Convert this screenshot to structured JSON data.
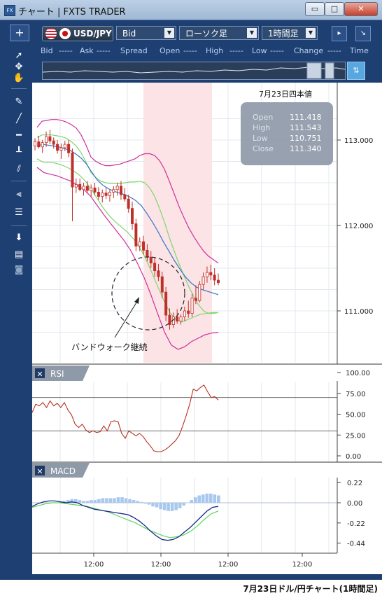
{
  "window": {
    "title": "チャート | FXTS TRADER",
    "app_icon": "FX",
    "controls": [
      "▭",
      "□",
      "✕"
    ]
  },
  "toolbar": {
    "add_label": "+",
    "symbol": "USD/JPY",
    "price_side": "Bid",
    "chart_style": "ローソク足",
    "timeframe": "1時間足",
    "detach_icon": "arrow-icon"
  },
  "quote_row": {
    "items": [
      "Bid",
      "-----",
      "Ask",
      "-----",
      "Spread",
      "Open",
      "-----",
      "High",
      "-----",
      "Low",
      "-----",
      "Change",
      "-----",
      "Time"
    ]
  },
  "sidebar": {
    "tools": [
      "cursor-icon",
      "crosshair-icon",
      "hand-icon",
      "brush-icon",
      "line-icon",
      "horizontal-line-icon",
      "vertical-line-icon",
      "channel-icon",
      "fibonacci-fan-icon",
      "fibonacci-retracement-icon",
      "download-icon",
      "list-icon",
      "camera-icon"
    ]
  },
  "colors": {
    "candle": "#c0302a",
    "bollinger_outer": "#d0309a",
    "bollinger_inner": "#7fd66c",
    "bollinger_middle": "#3576c4",
    "rsi": "#b83020",
    "macd": "#1a2a8c",
    "signal": "#5bd65b",
    "histogram": "#a8c8ee",
    "highlight": "#fbe3e6"
  },
  "chart_data": {
    "type": "candlestick",
    "price_axis": {
      "ticks": [
        "113.000",
        "112.000",
        "111.000"
      ],
      "values": [
        113.0,
        112.0,
        111.0
      ]
    },
    "time_axis": {
      "ticks": [
        "12:00",
        "12:00",
        "12:00",
        "12:00"
      ]
    },
    "info_box": {
      "title": "7月23日四本値",
      "rows": [
        {
          "label": "Open",
          "value": "111.418"
        },
        {
          "label": "High",
          "value": "111.543"
        },
        {
          "label": "Low",
          "value": "110.751"
        },
        {
          "label": "Close",
          "value": "111.340"
        }
      ]
    },
    "annotation": "バンドウォーク継続",
    "candles": [
      [
        112.93,
        113.02,
        112.88,
        112.98
      ],
      [
        112.98,
        113.05,
        112.9,
        112.92
      ],
      [
        112.92,
        113.0,
        112.85,
        112.97
      ],
      [
        112.97,
        113.1,
        112.92,
        113.04
      ],
      [
        113.04,
        113.12,
        112.95,
        112.99
      ],
      [
        112.99,
        113.03,
        112.9,
        112.95
      ],
      [
        112.95,
        113.0,
        112.84,
        112.88
      ],
      [
        112.88,
        112.96,
        112.78,
        112.91
      ],
      [
        112.91,
        112.99,
        112.87,
        112.95
      ],
      [
        112.95,
        113.0,
        112.8,
        112.85
      ],
      [
        112.85,
        112.9,
        112.05,
        112.45
      ],
      [
        112.45,
        112.55,
        112.38,
        112.48
      ],
      [
        112.48,
        112.55,
        112.4,
        112.42
      ],
      [
        112.42,
        112.5,
        112.35,
        112.46
      ],
      [
        112.46,
        112.52,
        112.38,
        112.41
      ],
      [
        112.41,
        112.48,
        112.33,
        112.44
      ],
      [
        112.44,
        112.5,
        112.36,
        112.39
      ],
      [
        112.39,
        112.45,
        112.3,
        112.34
      ],
      [
        112.34,
        112.42,
        112.27,
        112.38
      ],
      [
        112.38,
        112.45,
        112.31,
        112.35
      ],
      [
        112.35,
        112.42,
        112.28,
        112.39
      ],
      [
        112.39,
        112.46,
        112.32,
        112.42
      ],
      [
        112.42,
        112.5,
        112.35,
        112.46
      ],
      [
        112.46,
        112.52,
        112.3,
        112.36
      ],
      [
        112.36,
        112.44,
        112.28,
        112.31
      ],
      [
        112.31,
        112.36,
        112.15,
        112.2
      ],
      [
        112.2,
        112.28,
        111.95,
        112.02
      ],
      [
        112.02,
        112.08,
        111.7,
        111.76
      ],
      [
        111.76,
        111.86,
        111.7,
        111.81
      ],
      [
        111.81,
        111.88,
        111.66,
        111.71
      ],
      [
        111.71,
        111.78,
        111.58,
        111.63
      ],
      [
        111.63,
        111.7,
        111.5,
        111.56
      ],
      [
        111.56,
        111.62,
        111.4,
        111.47
      ],
      [
        111.47,
        111.55,
        111.35,
        111.4
      ],
      [
        111.4,
        111.46,
        111.15,
        111.22
      ],
      [
        111.22,
        111.28,
        110.88,
        110.95
      ],
      [
        110.95,
        111.03,
        110.78,
        110.84
      ],
      [
        110.84,
        110.98,
        110.8,
        110.93
      ],
      [
        110.93,
        111.02,
        110.85,
        110.88
      ],
      [
        110.88,
        110.96,
        110.84,
        110.93
      ],
      [
        110.93,
        111.05,
        110.88,
        111.0
      ],
      [
        111.0,
        111.12,
        110.92,
        110.97
      ],
      [
        110.97,
        111.2,
        110.93,
        111.15
      ],
      [
        111.15,
        111.3,
        111.08,
        111.12
      ],
      [
        111.12,
        111.35,
        111.1,
        111.31
      ],
      [
        111.31,
        111.45,
        111.25,
        111.4
      ],
      [
        111.4,
        111.52,
        111.33,
        111.45
      ],
      [
        111.45,
        111.54,
        111.36,
        111.42
      ],
      [
        111.42,
        111.5,
        111.3,
        111.36
      ],
      [
        111.36,
        111.44,
        111.3,
        111.33
      ]
    ],
    "bollinger": {
      "upper2": [
        113.15,
        113.22,
        113.23,
        113.24,
        113.24,
        113.23,
        113.21,
        113.18,
        113.14,
        113.06,
        112.94,
        112.8,
        112.75,
        112.72,
        112.7,
        112.7,
        112.71,
        112.72,
        112.74,
        112.76,
        112.78,
        112.82,
        112.84,
        112.84,
        112.82,
        112.76,
        112.66,
        112.52,
        112.37,
        112.22,
        112.09,
        111.97,
        111.87,
        111.78,
        111.7,
        111.64,
        111.6,
        111.56
      ],
      "upper1": [
        113.03,
        113.06,
        113.06,
        113.06,
        113.05,
        113.04,
        113.02,
        112.98,
        112.93,
        112.85,
        112.74,
        112.62,
        112.56,
        112.52,
        112.5,
        112.49,
        112.49,
        112.49,
        112.5,
        112.51,
        112.51,
        112.52,
        112.5,
        112.44,
        112.34,
        112.2,
        112.04,
        111.86,
        111.7,
        111.55,
        111.41,
        111.28,
        111.17,
        111.07,
        111.0,
        110.97,
        110.97,
        110.98
      ],
      "middle": [
        112.93,
        112.95,
        112.94,
        112.93,
        112.92,
        112.9,
        112.88,
        112.84,
        112.79,
        112.72,
        112.62,
        112.53,
        112.47,
        112.43,
        112.4,
        112.38,
        112.36,
        112.33,
        112.29,
        112.23,
        112.14,
        112.04,
        111.93,
        111.81,
        111.7,
        111.59,
        111.49,
        111.4,
        111.33,
        111.28,
        111.25,
        111.23,
        111.21,
        111.19
      ],
      "lower1": [
        112.78,
        112.74,
        112.74,
        112.73,
        112.71,
        112.68,
        112.64,
        112.59,
        112.52,
        112.42,
        112.31,
        112.2,
        112.11,
        112.04,
        111.98,
        111.92,
        111.84,
        111.74,
        111.61,
        111.45,
        111.28,
        111.12,
        110.98,
        110.9,
        110.87,
        110.9,
        110.93,
        110.96,
        110.97,
        110.98,
        110.98
      ],
      "lower2": [
        112.68,
        112.62,
        112.6,
        112.58,
        112.55,
        112.52,
        112.47,
        112.42,
        112.34,
        112.23,
        112.12,
        112.02,
        111.92,
        111.82,
        111.7,
        111.55,
        111.38,
        111.18,
        110.96,
        110.75,
        110.6,
        110.55,
        110.58,
        110.64,
        110.68,
        110.72,
        110.74,
        110.75
      ]
    },
    "rsi": {
      "label": "RSI",
      "axis_ticks": [
        "100.00",
        "75.00",
        "50.00",
        "25.00",
        "0.00"
      ],
      "levels": [
        70,
        30
      ],
      "values": [
        52,
        62,
        60,
        64,
        58,
        66,
        60,
        63,
        58,
        64,
        55,
        49,
        38,
        34,
        38,
        31,
        28,
        30,
        28,
        29,
        36,
        30,
        41,
        42,
        41,
        27,
        21,
        30,
        27,
        24,
        27,
        23,
        17,
        12,
        6,
        5,
        5,
        7,
        10,
        14,
        18,
        24,
        35,
        48,
        62,
        80,
        78,
        82,
        85,
        77,
        70,
        71,
        67
      ]
    },
    "macd": {
      "label": "MACD",
      "axis_ticks": [
        "0.22",
        "0.00",
        "-0.22",
        "-0.44"
      ],
      "macd": [
        -0.04,
        -0.01,
        0.01,
        0.02,
        0.02,
        0.01,
        0.0,
        0.01,
        0.0,
        -0.03,
        -0.05,
        -0.07,
        -0.08,
        -0.09,
        -0.1,
        -0.11,
        -0.12,
        -0.13,
        -0.16,
        -0.2,
        -0.25,
        -0.31,
        -0.36,
        -0.4,
        -0.41,
        -0.4,
        -0.37,
        -0.32,
        -0.27,
        -0.21,
        -0.15,
        -0.09,
        -0.05,
        -0.04
      ],
      "signal": [
        -0.05,
        -0.03,
        -0.01,
        0.0,
        0.0,
        -0.01,
        -0.02,
        -0.03,
        -0.04,
        -0.06,
        -0.08,
        -0.1,
        -0.13,
        -0.16,
        -0.19,
        -0.22,
        -0.26,
        -0.3,
        -0.33,
        -0.36,
        -0.38,
        -0.37,
        -0.35,
        -0.31,
        -0.25,
        -0.18,
        -0.12,
        -0.09
      ],
      "histogram": [
        0.0,
        0.02,
        0.03,
        0.04,
        0.04,
        0.03,
        0.02,
        0.02,
        0.03,
        0.03,
        0.04,
        0.05,
        0.05,
        0.05,
        0.05,
        0.06,
        0.06,
        0.05,
        0.04,
        0.03,
        0.02,
        0.01,
        -0.01,
        -0.02,
        -0.04,
        -0.05,
        -0.07,
        -0.08,
        -0.09,
        -0.09,
        -0.08,
        -0.06,
        -0.03,
        0.0,
        0.03,
        0.06,
        0.08,
        0.09,
        0.1,
        0.1,
        0.09,
        0.08
      ]
    }
  },
  "caption": "7月23日ドル/円チャート(1時間足)"
}
